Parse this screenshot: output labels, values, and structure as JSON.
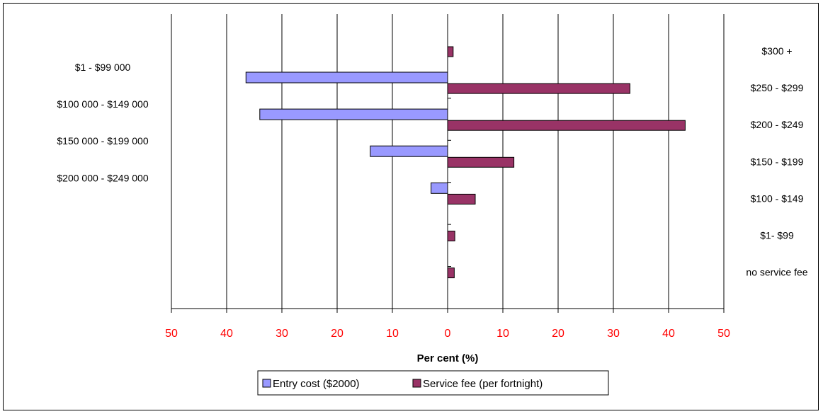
{
  "chart_data": {
    "type": "bar",
    "orientation": "horizontal",
    "xlabel": "Per cent (%)",
    "xlim": [
      -50,
      50
    ],
    "x_ticks": [
      "50",
      "40",
      "30",
      "20",
      "10",
      "0",
      "10",
      "20",
      "30",
      "40",
      "50"
    ],
    "grid": true,
    "legend_position": "bottom",
    "series": [
      {
        "name": "Entry cost ($2000)",
        "color": "#9999ff",
        "side": "left",
        "categories": [
          "$1 - $99 000",
          "$100 000 - $149 000",
          "$150 000 - $199 000",
          "$200 000 - $249 000"
        ],
        "values": [
          36.5,
          34,
          14,
          3
        ]
      },
      {
        "name": "Service fee (per fortnight)",
        "color": "#993366",
        "side": "right",
        "categories": [
          "$300 +",
          "$250 - $299",
          "$200 - $249",
          "$150 - $199",
          "$100 - $149",
          "$1- $99",
          "no service fee"
        ],
        "values": [
          1,
          33,
          43,
          12,
          5,
          1.3,
          1.2
        ]
      }
    ]
  }
}
